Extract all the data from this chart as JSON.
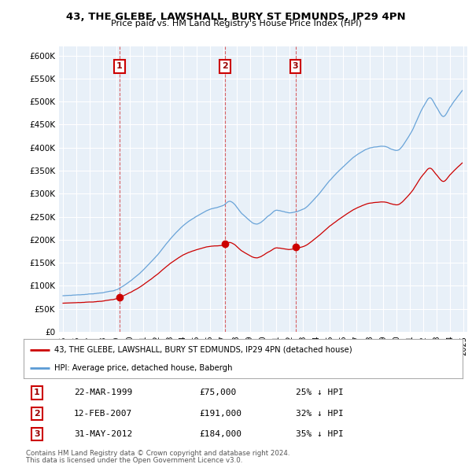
{
  "title": "43, THE GLEBE, LAWSHALL, BURY ST EDMUNDS, IP29 4PN",
  "subtitle": "Price paid vs. HM Land Registry's House Price Index (HPI)",
  "red_label": "43, THE GLEBE, LAWSHALL, BURY ST EDMUNDS, IP29 4PN (detached house)",
  "blue_label": "HPI: Average price, detached house, Babergh",
  "footnote1": "Contains HM Land Registry data © Crown copyright and database right 2024.",
  "footnote2": "This data is licensed under the Open Government Licence v3.0.",
  "transactions": [
    {
      "num": 1,
      "date": "22-MAR-1999",
      "price": "£75,000",
      "hpi": "25% ↓ HPI",
      "year": 1999.22,
      "value": 75000
    },
    {
      "num": 2,
      "date": "12-FEB-2007",
      "price": "£191,000",
      "hpi": "32% ↓ HPI",
      "year": 2007.12,
      "value": 191000
    },
    {
      "num": 3,
      "date": "31-MAY-2012",
      "price": "£184,000",
      "hpi": "35% ↓ HPI",
      "year": 2012.42,
      "value": 184000
    }
  ],
  "red_color": "#cc0000",
  "blue_color": "#5b9bd5",
  "chart_bg": "#e8f0f8",
  "grid_color": "#ffffff",
  "background_color": "#ffffff",
  "ylim": [
    0,
    620000
  ],
  "yticks": [
    0,
    50000,
    100000,
    150000,
    200000,
    250000,
    300000,
    350000,
    400000,
    450000,
    500000,
    550000,
    600000
  ],
  "hpi_anchors_x": [
    1995.0,
    1996.0,
    1997.0,
    1998.0,
    1999.0,
    2000.0,
    2001.0,
    2002.0,
    2003.0,
    2004.0,
    2005.0,
    2006.0,
    2007.0,
    2007.5,
    2008.5,
    2009.5,
    2010.5,
    2011.0,
    2012.0,
    2013.0,
    2014.0,
    2015.0,
    2016.0,
    2017.0,
    2018.0,
    2019.0,
    2020.0,
    2021.0,
    2022.0,
    2022.5,
    2023.0,
    2023.5,
    2024.0,
    2024.5
  ],
  "hpi_anchors_y": [
    78000,
    80000,
    82000,
    86000,
    92000,
    110000,
    135000,
    165000,
    200000,
    230000,
    250000,
    265000,
    275000,
    285000,
    255000,
    235000,
    255000,
    265000,
    260000,
    268000,
    295000,
    330000,
    360000,
    385000,
    400000,
    405000,
    395000,
    430000,
    490000,
    510000,
    490000,
    470000,
    490000,
    510000
  ]
}
